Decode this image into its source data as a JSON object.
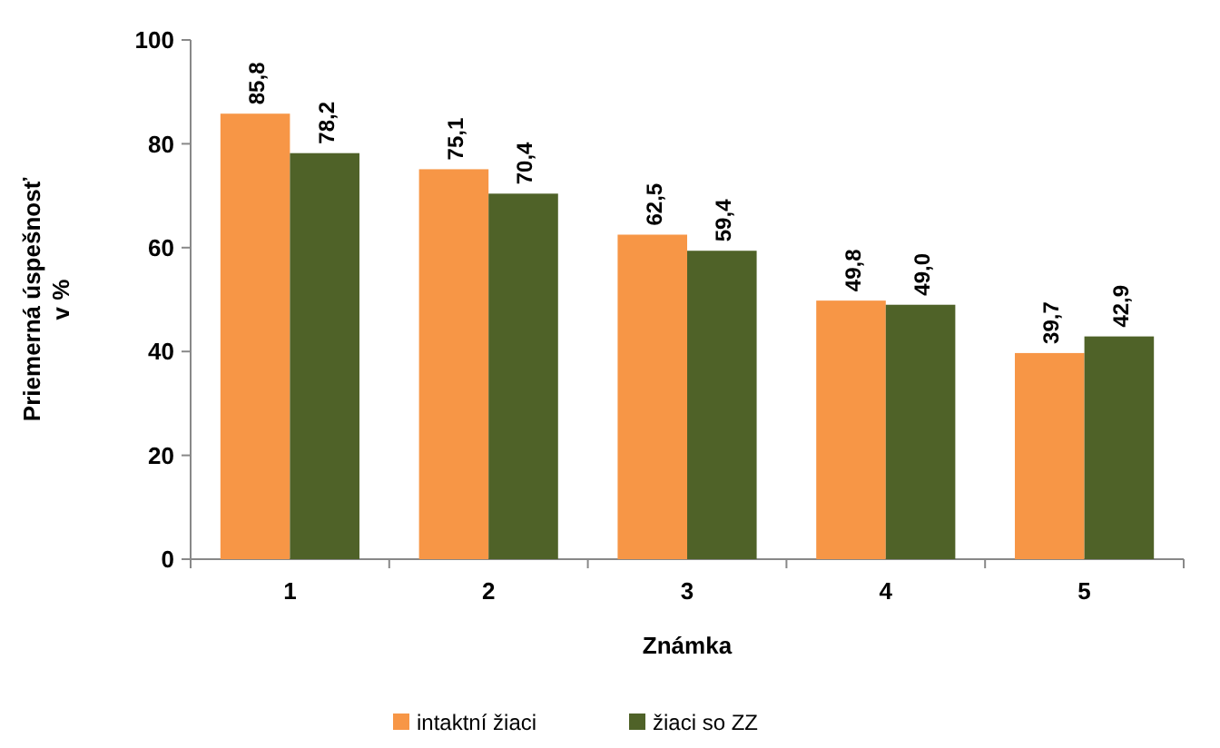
{
  "chart_data": {
    "type": "bar",
    "xlabel": "Známka",
    "ylabel": "Priemerná úspešnosť v %",
    "categories": [
      "1",
      "2",
      "3",
      "4",
      "5"
    ],
    "series": [
      {
        "name": "intaktní žiaci",
        "color": "#f79646",
        "values": [
          85.8,
          75.1,
          62.5,
          49.8,
          39.7
        ],
        "value_labels": [
          "85,8",
          "75,1",
          "62,5",
          "49,8",
          "39,7"
        ]
      },
      {
        "name": "žiaci so ZZ",
        "color": "#4f6228",
        "values": [
          78.2,
          70.4,
          59.4,
          49.0,
          42.9
        ],
        "value_labels": [
          "78,2",
          "70,4",
          "59,4",
          "49,0",
          "42,9"
        ]
      }
    ],
    "ylim": [
      0,
      100
    ],
    "yticks": [
      0,
      20,
      40,
      60,
      80,
      100
    ],
    "legend": "bottom"
  }
}
